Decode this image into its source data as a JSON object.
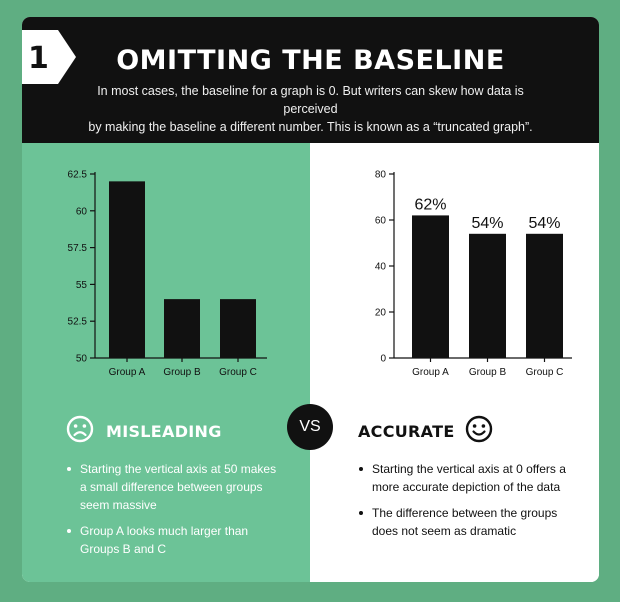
{
  "header": {
    "number": "1",
    "title": "OMITTING THE BASELINE",
    "subtitle_line1": "In most cases, the baseline for a graph is 0. But writers can skew how data is perceived",
    "subtitle_line2": "by making the baseline a different number. This is known as a “truncated graph”."
  },
  "colors": {
    "background": "#5fae82",
    "panel_green": "#6cc397",
    "dark": "#111111",
    "white": "#ffffff"
  },
  "chart_data": [
    {
      "type": "bar",
      "categories": [
        "Group A",
        "Group B",
        "Group C"
      ],
      "values": [
        62,
        54,
        54
      ],
      "ylim": [
        50,
        62.5
      ],
      "yticks": [
        "50",
        "52.5",
        "55",
        "57.5",
        "60",
        "62.5"
      ],
      "ytick_values": [
        50,
        52.5,
        55,
        57.5,
        60,
        62.5
      ],
      "title": "",
      "xlabel": "",
      "ylabel": "",
      "grid": false,
      "data_labels": []
    },
    {
      "type": "bar",
      "categories": [
        "Group A",
        "Group B",
        "Group C"
      ],
      "values": [
        62,
        54,
        54
      ],
      "ylim": [
        0,
        80
      ],
      "yticks": [
        "0",
        "20",
        "40",
        "60",
        "80"
      ],
      "ytick_values": [
        0,
        20,
        40,
        60,
        80
      ],
      "title": "",
      "xlabel": "",
      "ylabel": "",
      "grid": false,
      "data_labels": [
        "62%",
        "54%",
        "54%"
      ]
    }
  ],
  "misleading": {
    "icon": "sad-face-icon",
    "label": "MISLEADING",
    "bullets": [
      "Starting the vertical axis at 50 makes a small difference between groups seem massive",
      "Group A looks much larger than Groups B and C"
    ]
  },
  "vs_label": "VS",
  "accurate": {
    "icon": "happy-face-icon",
    "label": "ACCURATE",
    "bullets": [
      "Starting the vertical axis at 0 offers a more accurate depiction of the data",
      "The difference between the groups does not seem as dramatic"
    ]
  }
}
